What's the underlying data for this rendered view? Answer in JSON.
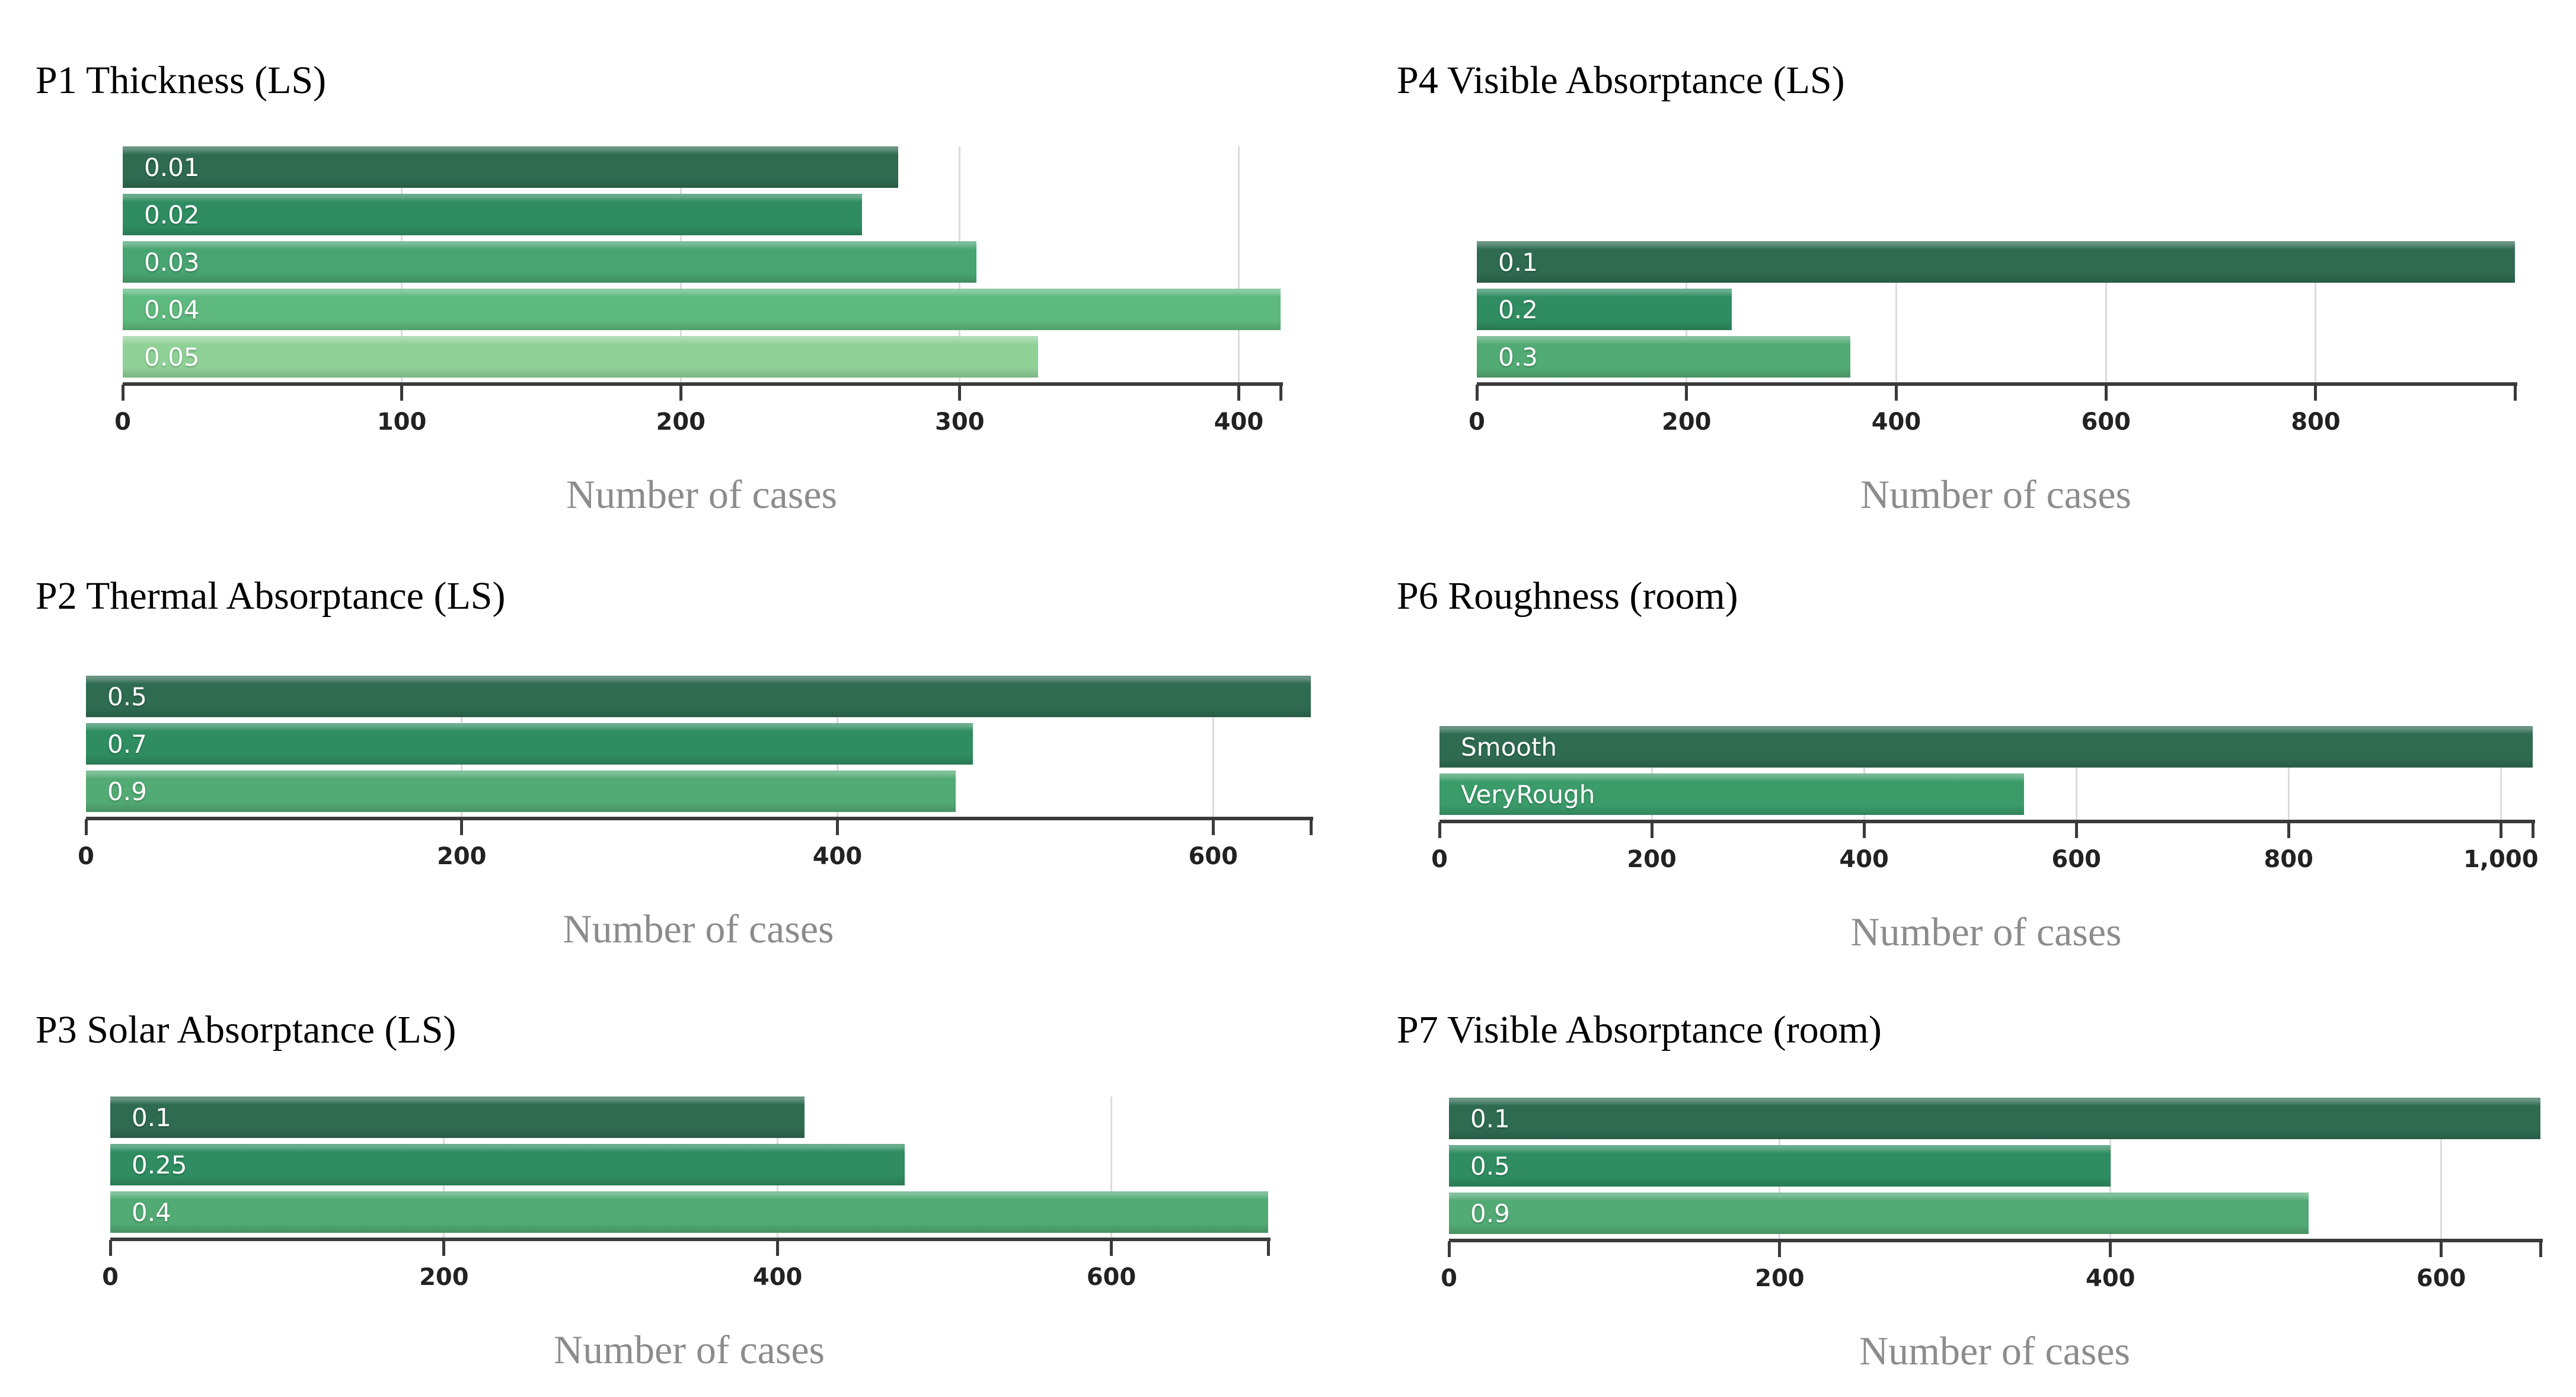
{
  "figure": {
    "background": "#ffffff",
    "x_axis_label": "Number of cases"
  },
  "colors": {
    "axis": "#3a3a3a",
    "gridline": "#dcdcdc",
    "tick_label": "#222222",
    "title": "#000000",
    "xlabel": "#8c8c8c",
    "bar_label": "#ffffff"
  },
  "chart_data": [
    {
      "id": "p1",
      "type": "bar",
      "orientation": "horizontal",
      "title": "P1 Thickness (LS)",
      "xlabel": "Number of cases",
      "categories": [
        "0.01",
        "0.02",
        "0.03",
        "0.04",
        "0.05"
      ],
      "values": [
        278,
        265,
        306,
        415,
        328
      ],
      "bar_colors": [
        "#2e6b51",
        "#2f8d61",
        "#48a471",
        "#5eb97e",
        "#8fd197"
      ],
      "ticks": [
        {
          "value": 0,
          "label": "0"
        },
        {
          "value": 100,
          "label": "100"
        },
        {
          "value": 200,
          "label": "200"
        },
        {
          "value": 300,
          "label": "300"
        },
        {
          "value": 400,
          "label": "400"
        }
      ],
      "xlim": [
        0,
        415
      ],
      "grid": true
    },
    {
      "id": "p2",
      "type": "bar",
      "orientation": "horizontal",
      "title": "P2 Thermal Absorptance (LS)",
      "xlabel": "Number of cases",
      "categories": [
        "0.5",
        "0.7",
        "0.9"
      ],
      "values": [
        652,
        472,
        463
      ],
      "bar_colors": [
        "#2e6b51",
        "#2f8d61",
        "#52aa74"
      ],
      "ticks": [
        {
          "value": 0,
          "label": "0"
        },
        {
          "value": 200,
          "label": "200"
        },
        {
          "value": 400,
          "label": "400"
        },
        {
          "value": 600,
          "label": "600"
        }
      ],
      "xlim": [
        0,
        652
      ],
      "grid": true
    },
    {
      "id": "p3",
      "type": "bar",
      "orientation": "horizontal",
      "title": "P3 Solar Absorptance (LS)",
      "xlabel": "Number of cases",
      "categories": [
        "0.1",
        "0.25",
        "0.4"
      ],
      "values": [
        416,
        476,
        694
      ],
      "bar_colors": [
        "#2e6b51",
        "#2f8d61",
        "#52aa74"
      ],
      "ticks": [
        {
          "value": 0,
          "label": "0"
        },
        {
          "value": 200,
          "label": "200"
        },
        {
          "value": 400,
          "label": "400"
        },
        {
          "value": 600,
          "label": "600"
        }
      ],
      "xlim": [
        0,
        694
      ],
      "grid": true
    },
    {
      "id": "p4",
      "type": "bar",
      "orientation": "horizontal",
      "title": "P4 Visible Absorptance (LS)",
      "xlabel": "Number of cases",
      "categories": [
        "0.1",
        "0.2",
        "0.3"
      ],
      "values": [
        990,
        243,
        356
      ],
      "bar_colors": [
        "#2e6b51",
        "#2f8d61",
        "#52aa74"
      ],
      "ticks": [
        {
          "value": 0,
          "label": "0"
        },
        {
          "value": 200,
          "label": "200"
        },
        {
          "value": 400,
          "label": "400"
        },
        {
          "value": 600,
          "label": "600"
        },
        {
          "value": 800,
          "label": "800"
        }
      ],
      "xlim": [
        0,
        990
      ],
      "grid": true
    },
    {
      "id": "p6",
      "type": "bar",
      "orientation": "horizontal",
      "title": "P6 Roughness (room)",
      "xlabel": "Number of cases",
      "categories": [
        "Smooth",
        "VeryRough"
      ],
      "values": [
        1030,
        551
      ],
      "bar_colors": [
        "#2e6b51",
        "#3b9c6a"
      ],
      "ticks": [
        {
          "value": 0,
          "label": "0"
        },
        {
          "value": 200,
          "label": "200"
        },
        {
          "value": 400,
          "label": "400"
        },
        {
          "value": 600,
          "label": "600"
        },
        {
          "value": 800,
          "label": "800"
        },
        {
          "value": 1000,
          "label": "1,000"
        }
      ],
      "xlim": [
        0,
        1030
      ],
      "grid": true
    },
    {
      "id": "p7",
      "type": "bar",
      "orientation": "horizontal",
      "title": "P7 Visible Absorptance (room)",
      "xlabel": "Number of cases",
      "categories": [
        "0.1",
        "0.5",
        "0.9"
      ],
      "values": [
        660,
        400,
        520
      ],
      "bar_colors": [
        "#2e6b51",
        "#2f8d61",
        "#52aa74"
      ],
      "ticks": [
        {
          "value": 0,
          "label": "0"
        },
        {
          "value": 200,
          "label": "200"
        },
        {
          "value": 400,
          "label": "400"
        },
        {
          "value": 600,
          "label": "600"
        }
      ],
      "xlim": [
        0,
        660
      ],
      "grid": true
    }
  ]
}
